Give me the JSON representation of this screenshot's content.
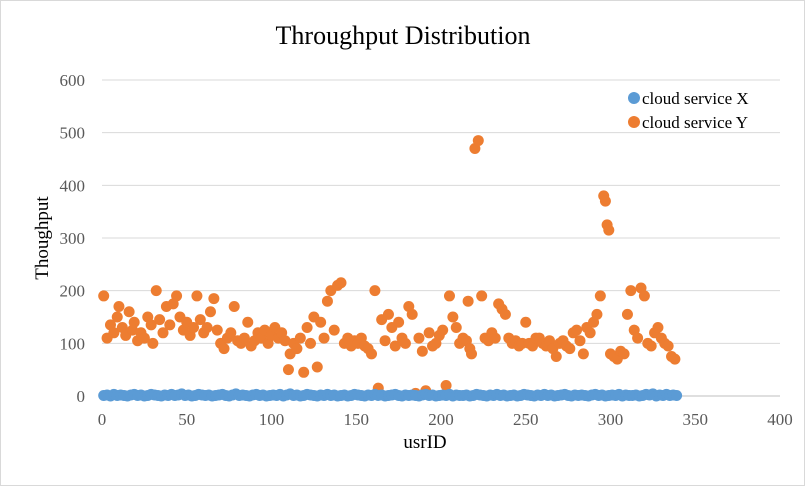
{
  "chart_data": {
    "type": "scatter",
    "title": "Throughput  Distribution",
    "xlabel": "usrID",
    "ylabel": "Thoughput",
    "xlim": [
      0,
      400
    ],
    "ylim": [
      0,
      600
    ],
    "x_ticks": [
      "0",
      "50",
      "100",
      "150",
      "200",
      "250",
      "300",
      "350",
      "400"
    ],
    "y_ticks": [
      "0",
      "100",
      "200",
      "300",
      "400",
      "500",
      "600"
    ],
    "grid": true,
    "legend_position": "top-right",
    "series": [
      {
        "name": "cloud service X",
        "color": "#5b9bd5",
        "x": [
          1,
          3,
          5,
          7,
          9,
          11,
          13,
          15,
          17,
          19,
          21,
          23,
          25,
          27,
          29,
          31,
          33,
          35,
          37,
          39,
          41,
          43,
          45,
          47,
          49,
          51,
          53,
          55,
          57,
          59,
          61,
          63,
          65,
          67,
          69,
          71,
          73,
          75,
          77,
          79,
          81,
          83,
          85,
          87,
          89,
          91,
          93,
          95,
          97,
          99,
          101,
          103,
          105,
          107,
          109,
          111,
          113,
          115,
          117,
          119,
          121,
          123,
          125,
          127,
          129,
          131,
          133,
          135,
          137,
          139,
          141,
          143,
          145,
          147,
          149,
          151,
          153,
          155,
          157,
          159,
          161,
          163,
          165,
          167,
          169,
          171,
          173,
          175,
          177,
          179,
          181,
          183,
          185,
          187,
          189,
          191,
          193,
          195,
          197,
          199,
          201,
          203,
          205,
          207,
          209,
          211,
          213,
          215,
          217,
          219,
          221,
          223,
          225,
          227,
          229,
          231,
          233,
          235,
          237,
          239,
          241,
          243,
          245,
          247,
          249,
          251,
          253,
          255,
          257,
          259,
          261,
          263,
          265,
          267,
          269,
          271,
          273,
          275,
          277,
          279,
          281,
          283,
          285,
          287,
          289,
          291,
          293,
          295,
          297,
          299,
          301,
          303,
          305,
          307,
          309,
          311,
          313,
          315,
          317,
          319,
          321,
          323,
          325,
          327,
          329,
          331,
          333,
          335,
          337,
          339
        ],
        "y": [
          1,
          2,
          0,
          3,
          1,
          2,
          1,
          0,
          2,
          3,
          1,
          2,
          0,
          1,
          3,
          2,
          1,
          0,
          2,
          1,
          3,
          1,
          2,
          4,
          1,
          2,
          0,
          1,
          3,
          2,
          1,
          2,
          0,
          1,
          2,
          3,
          1,
          0,
          2,
          4,
          1,
          2,
          1,
          0,
          2,
          3,
          1,
          2,
          0,
          1,
          2,
          1,
          3,
          0,
          2,
          4,
          1,
          2,
          0,
          1,
          3,
          2,
          1,
          0,
          2,
          1,
          3,
          1,
          2,
          0,
          1,
          2,
          0,
          1,
          3,
          2,
          1,
          0,
          2,
          1,
          3,
          1,
          2,
          0,
          1,
          2,
          3,
          1,
          0,
          2,
          1,
          2,
          1,
          0,
          2,
          3,
          1,
          2,
          0,
          1,
          2,
          1,
          3,
          0,
          2,
          1,
          1,
          2,
          0,
          1,
          3,
          2,
          1,
          0,
          2,
          1,
          3,
          1,
          2,
          0,
          1,
          2,
          0,
          1,
          3,
          2,
          1,
          0,
          2,
          1,
          3,
          1,
          2,
          0,
          1,
          2,
          3,
          1,
          0,
          2,
          1,
          2,
          1,
          0,
          2,
          3,
          1,
          2,
          0,
          1,
          2,
          1,
          3,
          0,
          2,
          1,
          1,
          2,
          0,
          1,
          3,
          2,
          4,
          0,
          2,
          1,
          3,
          1,
          2,
          1
        ]
      },
      {
        "name": "cloud service Y",
        "color": "#ed7d31",
        "x": [
          1,
          3,
          5,
          7,
          9,
          10,
          12,
          14,
          16,
          18,
          19,
          21,
          23,
          25,
          27,
          29,
          30,
          32,
          34,
          36,
          38,
          40,
          42,
          44,
          46,
          48,
          50,
          52,
          54,
          56,
          58,
          60,
          62,
          64,
          66,
          68,
          70,
          72,
          74,
          76,
          78,
          80,
          82,
          84,
          86,
          88,
          90,
          92,
          94,
          96,
          98,
          100,
          102,
          104,
          106,
          108,
          110,
          111,
          113,
          115,
          117,
          119,
          121,
          123,
          125,
          127,
          129,
          131,
          133,
          135,
          137,
          139,
          141,
          143,
          145,
          147,
          149,
          151,
          153,
          155,
          157,
          159,
          161,
          163,
          165,
          167,
          169,
          171,
          173,
          175,
          177,
          179,
          181,
          183,
          185,
          187,
          189,
          191,
          193,
          195,
          197,
          199,
          201,
          203,
          205,
          207,
          209,
          211,
          213,
          215,
          216,
          217,
          218,
          220,
          222,
          224,
          226,
          228,
          230,
          232,
          234,
          236,
          238,
          240,
          242,
          244,
          246,
          248,
          250,
          252,
          254,
          256,
          258,
          260,
          262,
          264,
          266,
          268,
          270,
          272,
          274,
          276,
          278,
          280,
          282,
          284,
          286,
          288,
          290,
          292,
          294,
          296,
          297,
          298,
          299,
          300,
          302,
          304,
          306,
          308,
          310,
          312,
          314,
          316,
          318,
          320,
          322,
          324,
          326,
          328,
          330,
          332,
          334,
          336,
          338
        ],
        "y": [
          190,
          110,
          135,
          120,
          150,
          170,
          130,
          115,
          160,
          125,
          140,
          105,
          120,
          110,
          150,
          135,
          100,
          200,
          145,
          120,
          170,
          135,
          175,
          190,
          150,
          125,
          140,
          115,
          130,
          190,
          145,
          120,
          130,
          160,
          185,
          125,
          100,
          90,
          110,
          120,
          170,
          105,
          100,
          110,
          140,
          95,
          105,
          120,
          110,
          125,
          100,
          115,
          130,
          110,
          120,
          105,
          50,
          80,
          100,
          90,
          110,
          45,
          130,
          100,
          150,
          55,
          140,
          110,
          180,
          200,
          125,
          210,
          215,
          100,
          110,
          95,
          105,
          100,
          110,
          95,
          90,
          80,
          200,
          15,
          145,
          105,
          155,
          130,
          95,
          140,
          110,
          100,
          170,
          155,
          5,
          110,
          85,
          10,
          120,
          95,
          100,
          115,
          125,
          20,
          190,
          150,
          130,
          100,
          110,
          105,
          180,
          90,
          80,
          470,
          485,
          190,
          110,
          105,
          120,
          110,
          175,
          165,
          155,
          110,
          100,
          105,
          95,
          100,
          140,
          100,
          95,
          110,
          110,
          100,
          95,
          105,
          90,
          75,
          100,
          105,
          95,
          90,
          120,
          125,
          105,
          80,
          130,
          120,
          140,
          155,
          190,
          380,
          370,
          325,
          315,
          80,
          75,
          70,
          85,
          80,
          155,
          200,
          125,
          110,
          205,
          190,
          100,
          95,
          120,
          130,
          110,
          100,
          95,
          75,
          70
        ]
      }
    ]
  }
}
